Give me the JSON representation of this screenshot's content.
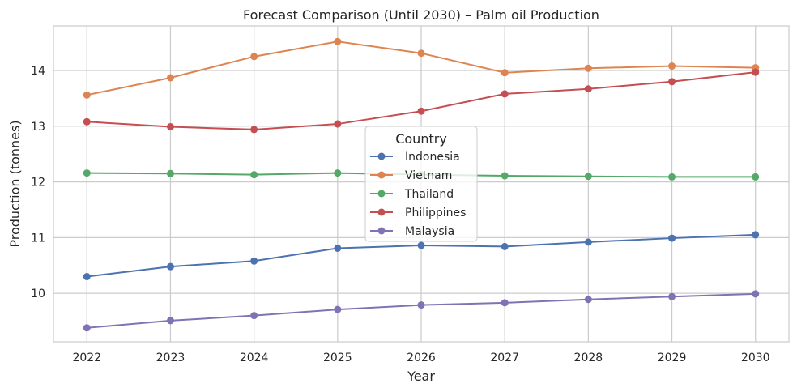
{
  "chart_data": {
    "type": "line",
    "title": "Forecast Comparison (Until 2030) – Palm oil Production",
    "xlabel": "Year",
    "ylabel": "Production (tonnes)",
    "x": [
      2022,
      2023,
      2024,
      2025,
      2026,
      2027,
      2028,
      2029,
      2030
    ],
    "xlim": [
      2021.6,
      2030.4
    ],
    "ylim": [
      9.13,
      14.8
    ],
    "yticks": [
      10,
      11,
      12,
      13,
      14
    ],
    "grid": true,
    "legend": {
      "title": "Country",
      "placement": "center"
    },
    "series": [
      {
        "name": "Indonesia",
        "color": "#4c72b0",
        "values": [
          10.3,
          10.48,
          10.58,
          10.81,
          10.86,
          10.84,
          10.92,
          10.99,
          11.05
        ]
      },
      {
        "name": "Vietnam",
        "color": "#dd8452",
        "values": [
          13.56,
          13.87,
          14.25,
          14.52,
          14.31,
          13.96,
          14.04,
          14.08,
          14.05
        ]
      },
      {
        "name": "Thailand",
        "color": "#55a868",
        "values": [
          12.16,
          12.15,
          12.13,
          12.16,
          12.13,
          12.11,
          12.1,
          12.09,
          12.09
        ]
      },
      {
        "name": "Philippines",
        "color": "#c44e52",
        "values": [
          13.08,
          12.99,
          12.94,
          13.04,
          13.27,
          13.58,
          13.67,
          13.8,
          13.97
        ]
      },
      {
        "name": "Malaysia",
        "color": "#8172b3",
        "values": [
          9.38,
          9.51,
          9.6,
          9.71,
          9.79,
          9.83,
          9.89,
          9.94,
          9.99
        ]
      }
    ]
  }
}
